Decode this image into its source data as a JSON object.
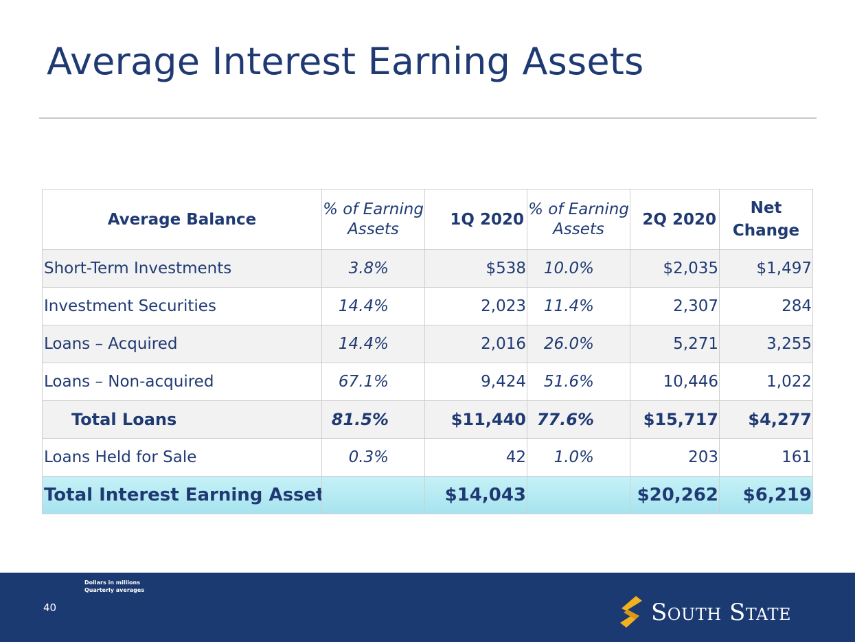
{
  "slide": {
    "title": "Average Interest Earning Assets",
    "page_number": "40"
  },
  "table": {
    "headers": {
      "label": "Average Balance",
      "pct1_line1": "% of Earning",
      "pct1_line2": "Assets",
      "q1": "1Q 2020",
      "pct2_line1": "% of Earning",
      "pct2_line2": "Assets",
      "q2": "2Q 2020",
      "net_line1": "Net",
      "net_line2": "Change"
    },
    "rows": [
      {
        "label": "Short-Term Investments",
        "pct1": "3.8%",
        "q1": "$538",
        "pct2": "10.0%",
        "q2": "$2,035",
        "net": "$1,497"
      },
      {
        "label": "Investment Securities",
        "pct1": "14.4%",
        "q1": "2,023",
        "pct2": "11.4%",
        "q2": "2,307",
        "net": "284"
      },
      {
        "label": "Loans – Acquired",
        "pct1": "14.4%",
        "q1": "2,016",
        "pct2": "26.0%",
        "q2": "5,271",
        "net": "3,255"
      },
      {
        "label": "Loans – Non-acquired",
        "pct1": "67.1%",
        "q1": "9,424",
        "pct2": "51.6%",
        "q2": "10,446",
        "net": "1,022"
      },
      {
        "label": "Total Loans",
        "pct1": "81.5%",
        "q1": "$11,440",
        "pct2": "77.6%",
        "q2": "$15,717",
        "net": "$4,277"
      },
      {
        "label": "Loans Held for Sale",
        "pct1": "0.3%",
        "q1": "42",
        "pct2": "1.0%",
        "q2": "203",
        "net": "161"
      }
    ],
    "total": {
      "label": "Total Interest Earning Assets",
      "q1": "$14,043",
      "q2": "$20,262",
      "net": "$6,219"
    }
  },
  "footer": {
    "note_line1": "Dollars in millions",
    "note_line2": "Quarterly averages",
    "logo_text": "South State",
    "logo_icon": "south-state-s-icon"
  },
  "colors": {
    "title": "#1f3a73",
    "footer_bg": "#1b3a72",
    "total_row": "#b5eaf3",
    "logo_mark": "#f3b120"
  }
}
